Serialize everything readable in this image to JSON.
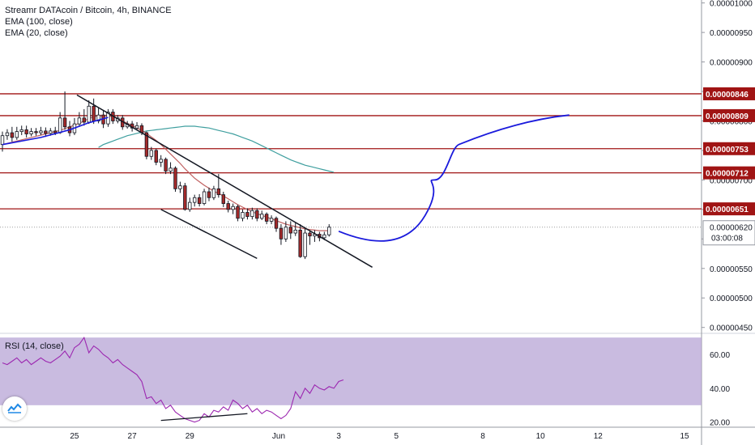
{
  "header": {
    "title": "Streamr DATAcoin / Bitcoin, 4h, BINANCE",
    "indicators": [
      "EMA (100, close)",
      "EMA (20, close)"
    ]
  },
  "rsi_panel": {
    "label": "RSI (14, close)"
  },
  "countdown": "03:00:08",
  "colors": {
    "up_candle": "#ffffff",
    "down_candle": "#a52a2a",
    "candle_border": "#131722",
    "ema100": "#3f9f9f",
    "ema20": "#c06060",
    "horizontal_level": "#a01414",
    "price_tag": "#a01414",
    "forecast": "#1a1adc",
    "trendline": "#131722",
    "rsi_line": "#9c27b0",
    "rsi_band": "#b7a4d6",
    "current_price_line": "#9e9e9e"
  },
  "chart_data": [
    {
      "type": "candlestick",
      "title": "Streamr DATAcoin / Bitcoin, 4h, BINANCE",
      "x_tick_labels": [
        "25",
        "27",
        "29",
        "Jun",
        "3",
        "5",
        "8",
        "10",
        "12",
        "15"
      ],
      "y_tick_labels": [
        "0.00001000",
        "0.00000950",
        "0.00000900",
        "0.00000850",
        "0.00000800",
        "0.00000750",
        "0.00000700",
        "0.00000650",
        "0.00000600",
        "0.00000550",
        "0.00000500",
        "0.00000450"
      ],
      "ylim": [
        4.4e-06,
        1.005e-05
      ],
      "current_price": "0.00000620",
      "horizontal_levels": [
        "0.00000846",
        "0.00000809",
        "0.00000753",
        "0.00000712",
        "0.00000651"
      ],
      "candles": [
        {
          "o": 7.6e-06,
          "c": 7.75e-06,
          "h": 7.82e-06,
          "l": 7.48e-06
        },
        {
          "o": 7.75e-06,
          "c": 7.8e-06,
          "h": 7.86e-06,
          "l": 7.68e-06
        },
        {
          "o": 7.8e-06,
          "c": 7.72e-06,
          "h": 7.9e-06,
          "l": 7.65e-06
        },
        {
          "o": 7.72e-06,
          "c": 7.82e-06,
          "h": 7.9e-06,
          "l": 7.68e-06
        },
        {
          "o": 7.82e-06,
          "c": 7.85e-06,
          "h": 7.92e-06,
          "l": 7.76e-06
        },
        {
          "o": 7.85e-06,
          "c": 7.78e-06,
          "h": 7.92e-06,
          "l": 7.72e-06
        },
        {
          "o": 7.78e-06,
          "c": 7.82e-06,
          "h": 7.88e-06,
          "l": 7.74e-06
        },
        {
          "o": 7.82e-06,
          "c": 7.8e-06,
          "h": 7.88e-06,
          "l": 7.75e-06
        },
        {
          "o": 7.8e-06,
          "c": 7.83e-06,
          "h": 7.9e-06,
          "l": 7.76e-06
        },
        {
          "o": 7.83e-06,
          "c": 7.79e-06,
          "h": 7.89e-06,
          "l": 7.73e-06
        },
        {
          "o": 7.79e-06,
          "c": 7.83e-06,
          "h": 7.88e-06,
          "l": 7.75e-06
        },
        {
          "o": 7.83e-06,
          "c": 7.8e-06,
          "h": 7.9e-06,
          "l": 7.76e-06
        },
        {
          "o": 7.8e-06,
          "c": 8.05e-06,
          "h": 8.15e-06,
          "l": 7.78e-06
        },
        {
          "o": 8.05e-06,
          "c": 7.9e-06,
          "h": 8.5e-06,
          "l": 7.85e-06
        },
        {
          "o": 7.9e-06,
          "c": 7.8e-06,
          "h": 8e-06,
          "l": 7.74e-06
        },
        {
          "o": 7.8e-06,
          "c": 7.95e-06,
          "h": 8.05e-06,
          "l": 7.76e-06
        },
        {
          "o": 7.95e-06,
          "c": 8.05e-06,
          "h": 8.15e-06,
          "l": 7.9e-06
        },
        {
          "o": 8.05e-06,
          "c": 7.98e-06,
          "h": 8.2e-06,
          "l": 7.92e-06
        },
        {
          "o": 7.98e-06,
          "c": 8.25e-06,
          "h": 8.35e-06,
          "l": 7.95e-06
        },
        {
          "o": 8.25e-06,
          "c": 8e-06,
          "h": 8.38e-06,
          "l": 7.95e-06
        },
        {
          "o": 8e-06,
          "c": 8.1e-06,
          "h": 8.23e-06,
          "l": 7.96e-06
        },
        {
          "o": 8.1e-06,
          "c": 7.95e-06,
          "h": 8.18e-06,
          "l": 7.88e-06
        },
        {
          "o": 7.95e-06,
          "c": 8.15e-06,
          "h": 8.2e-06,
          "l": 7.9e-06
        },
        {
          "o": 8.15e-06,
          "c": 8e-06,
          "h": 8.2e-06,
          "l": 7.95e-06
        },
        {
          "o": 8e-06,
          "c": 8.05e-06,
          "h": 8.1e-06,
          "l": 7.96e-06
        },
        {
          "o": 8.05e-06,
          "c": 7.9e-06,
          "h": 8.1e-06,
          "l": 7.85e-06
        },
        {
          "o": 7.9e-06,
          "c": 7.95e-06,
          "h": 8e-06,
          "l": 7.87e-06
        },
        {
          "o": 7.95e-06,
          "c": 7.88e-06,
          "h": 8e-06,
          "l": 7.82e-06
        },
        {
          "o": 7.88e-06,
          "c": 7.92e-06,
          "h": 7.98e-06,
          "l": 7.84e-06
        },
        {
          "o": 7.92e-06,
          "c": 7.8e-06,
          "h": 7.96e-06,
          "l": 7.76e-06
        },
        {
          "o": 7.8e-06,
          "c": 7.4e-06,
          "h": 7.82e-06,
          "l": 7.35e-06
        },
        {
          "o": 7.4e-06,
          "c": 7.5e-06,
          "h": 7.56e-06,
          "l": 7.34e-06
        },
        {
          "o": 7.5e-06,
          "c": 7.3e-06,
          "h": 7.53e-06,
          "l": 7.25e-06
        },
        {
          "o": 7.3e-06,
          "c": 7.35e-06,
          "h": 7.42e-06,
          "l": 7.22e-06
        },
        {
          "o": 7.35e-06,
          "c": 7.15e-06,
          "h": 7.38e-06,
          "l": 7.1e-06
        },
        {
          "o": 7.15e-06,
          "c": 7.2e-06,
          "h": 7.3e-06,
          "l": 7.1e-06
        },
        {
          "o": 7.2e-06,
          "c": 6.85e-06,
          "h": 7.23e-06,
          "l": 6.8e-06
        },
        {
          "o": 6.85e-06,
          "c": 6.9e-06,
          "h": 6.97e-06,
          "l": 6.78e-06
        },
        {
          "o": 6.9e-06,
          "c": 6.5e-06,
          "h": 6.95e-06,
          "l": 6.48e-06
        },
        {
          "o": 6.5e-06,
          "c": 6.62e-06,
          "h": 6.7e-06,
          "l": 6.46e-06
        },
        {
          "o": 6.62e-06,
          "c": 6.7e-06,
          "h": 6.75e-06,
          "l": 6.55e-06
        },
        {
          "o": 6.7e-06,
          "c": 6.6e-06,
          "h": 6.76e-06,
          "l": 6.55e-06
        },
        {
          "o": 6.6e-06,
          "c": 6.8e-06,
          "h": 6.85e-06,
          "l": 6.57e-06
        },
        {
          "o": 6.8e-06,
          "c": 6.7e-06,
          "h": 6.87e-06,
          "l": 6.64e-06
        },
        {
          "o": 6.7e-06,
          "c": 6.85e-06,
          "h": 6.9e-06,
          "l": 6.66e-06
        },
        {
          "o": 6.85e-06,
          "c": 6.75e-06,
          "h": 7.1e-06,
          "l": 6.7e-06
        },
        {
          "o": 6.75e-06,
          "c": 6.6e-06,
          "h": 6.8e-06,
          "l": 6.54e-06
        },
        {
          "o": 6.6e-06,
          "c": 6.5e-06,
          "h": 6.65e-06,
          "l": 6.45e-06
        },
        {
          "o": 6.5e-06,
          "c": 6.55e-06,
          "h": 6.6e-06,
          "l": 6.42e-06
        },
        {
          "o": 6.55e-06,
          "c": 6.35e-06,
          "h": 6.58e-06,
          "l": 6.3e-06
        },
        {
          "o": 6.35e-06,
          "c": 6.45e-06,
          "h": 6.5e-06,
          "l": 6.3e-06
        },
        {
          "o": 6.45e-06,
          "c": 6.38e-06,
          "h": 6.52e-06,
          "l": 6.33e-06
        },
        {
          "o": 6.38e-06,
          "c": 6.48e-06,
          "h": 6.53e-06,
          "l": 6.33e-06
        },
        {
          "o": 6.48e-06,
          "c": 6.35e-06,
          "h": 6.52e-06,
          "l": 6.3e-06
        },
        {
          "o": 6.35e-06,
          "c": 6.42e-06,
          "h": 6.48e-06,
          "l": 6.32e-06
        },
        {
          "o": 6.42e-06,
          "c": 6.3e-06,
          "h": 6.45e-06,
          "l": 6.25e-06
        },
        {
          "o": 6.3e-06,
          "c": 6.35e-06,
          "h": 6.4e-06,
          "l": 6.25e-06
        },
        {
          "o": 6.35e-06,
          "c": 6.18e-06,
          "h": 6.38e-06,
          "l": 6.12e-06
        },
        {
          "o": 6.18e-06,
          "c": 6e-06,
          "h": 6.25e-06,
          "l": 5.9e-06
        },
        {
          "o": 6e-06,
          "c": 6.2e-06,
          "h": 6.3e-06,
          "l": 5.95e-06
        },
        {
          "o": 6.2e-06,
          "c": 6.1e-06,
          "h": 6.3e-06,
          "l": 6e-06
        },
        {
          "o": 6.1e-06,
          "c": 6.15e-06,
          "h": 6.28e-06,
          "l": 6.05e-06
        },
        {
          "o": 6.15e-06,
          "c": 5.7e-06,
          "h": 6.25e-06,
          "l": 5.68e-06
        },
        {
          "o": 5.7e-06,
          "c": 6.1e-06,
          "h": 6.2e-06,
          "l": 5.66e-06
        },
        {
          "o": 6.1e-06,
          "c": 6.05e-06,
          "h": 6.15e-06,
          "l": 5.9e-06
        },
        {
          "o": 6.05e-06,
          "c": 6.08e-06,
          "h": 6.15e-06,
          "l": 5.95e-06
        },
        {
          "o": 6.08e-06,
          "c": 6.02e-06,
          "h": 6.12e-06,
          "l": 5.96e-06
        },
        {
          "o": 6.02e-06,
          "c": 6.07e-06,
          "h": 6.12e-06,
          "l": 5.98e-06
        },
        {
          "o": 6.07e-06,
          "c": 6.2e-06,
          "h": 6.25e-06,
          "l": 6.04e-06
        }
      ],
      "ema100": [
        7.55e-06,
        7.6e-06,
        7.63e-06,
        7.66e-06,
        7.69e-06,
        7.72e-06,
        7.75e-06,
        7.77e-06,
        7.79e-06,
        7.81e-06,
        7.83e-06,
        7.84e-06,
        7.85e-06,
        7.86e-06,
        7.87e-06,
        7.88e-06,
        7.89e-06,
        7.9e-06,
        7.91e-06,
        7.91e-06,
        7.91e-06,
        7.9e-06,
        7.89e-06,
        7.88e-06,
        7.86e-06,
        7.84e-06,
        7.82e-06,
        7.8e-06,
        7.78e-06,
        7.75e-06,
        7.72e-06,
        7.69e-06,
        7.66e-06,
        7.62e-06,
        7.58e-06,
        7.54e-06,
        7.5e-06,
        7.46e-06,
        7.42e-06,
        7.38e-06,
        7.34e-06,
        7.31e-06,
        7.28e-06,
        7.25e-06,
        7.23e-06,
        7.21e-06,
        7.19e-06,
        7.17e-06,
        7.15e-06,
        7.13e-06
      ],
      "ema20": [
        7.6e-06,
        7.62e-06,
        7.64e-06,
        7.66e-06,
        7.68e-06,
        7.7e-06,
        7.72e-06,
        7.74e-06,
        7.76e-06,
        7.78e-06,
        7.8e-06,
        7.82e-06,
        7.84e-06,
        7.87e-06,
        7.9e-06,
        7.93e-06,
        7.96e-06,
        8e-06,
        8.04e-06,
        8.07e-06,
        8.09e-06,
        8.1e-06,
        8.09e-06,
        8.07e-06,
        8.04e-06,
        8e-06,
        7.96e-06,
        7.92e-06,
        7.88e-06,
        7.84e-06,
        7.79e-06,
        7.73e-06,
        7.67e-06,
        7.6e-06,
        7.52e-06,
        7.44e-06,
        7.36e-06,
        7.28e-06,
        7.19e-06,
        7.11e-06,
        7.03e-06,
        6.97e-06,
        6.91e-06,
        6.86e-06,
        6.81e-06,
        6.77e-06,
        6.73e-06,
        6.68e-06,
        6.63e-06,
        6.58e-06,
        6.54e-06,
        6.5e-06,
        6.46e-06,
        6.43e-06,
        6.4e-06,
        6.37e-06,
        6.34e-06,
        6.31e-06,
        6.28e-06,
        6.25e-06,
        6.23e-06,
        6.21e-06,
        6.19e-06,
        6.17e-06,
        6.16e-06,
        6.15e-06,
        6.14e-06,
        6.14e-06,
        6.14e-06
      ],
      "ema100_start_index": 0,
      "ema20_start_index": 0,
      "descending_channel": {
        "upper": [
          [
            15,
            8.44e-06
          ],
          [
            65,
            6e-06
          ]
        ],
        "upper_projection_end": [
          [
            65,
            6e-06
          ],
          [
            77,
            5.52e-06
          ]
        ],
        "lower": [
          [
            33,
            6.5e-06
          ],
          [
            53,
            5.67e-06
          ]
        ]
      },
      "forecast_path": [
        [
          70,
          6.13e-06
        ],
        [
          77,
          5.98e-06
        ],
        [
          84,
          6.04e-06
        ],
        [
          88,
          6.4e-06
        ],
        [
          90,
          7e-06
        ],
        [
          95,
          7.6e-06
        ],
        [
          110,
          8e-06
        ],
        [
          118,
          8.1e-06
        ]
      ]
    },
    {
      "type": "line",
      "title": "RSI (14, close)",
      "y_tick_labels": [
        "60.00",
        "40.00",
        "20.00"
      ],
      "ylim": [
        17,
        72
      ],
      "band": [
        30,
        70
      ],
      "values": [
        55,
        54,
        56,
        58,
        55,
        57,
        54,
        56,
        58,
        56,
        55,
        57,
        59,
        62,
        58,
        64,
        66,
        70,
        61,
        65,
        63,
        60,
        58,
        55,
        57,
        54,
        52,
        50,
        48,
        44,
        34,
        35,
        31,
        33,
        28,
        30,
        26,
        24,
        22,
        21,
        20,
        21,
        25,
        23,
        27,
        26,
        29,
        27,
        33,
        31,
        28,
        30,
        26,
        28,
        25,
        27,
        26,
        24,
        22,
        24,
        28,
        38,
        34,
        40,
        37,
        42,
        40,
        39,
        41,
        40,
        44,
        45
      ],
      "divergence_line": [
        [
          33,
          21
        ],
        [
          51,
          25
        ]
      ]
    }
  ]
}
